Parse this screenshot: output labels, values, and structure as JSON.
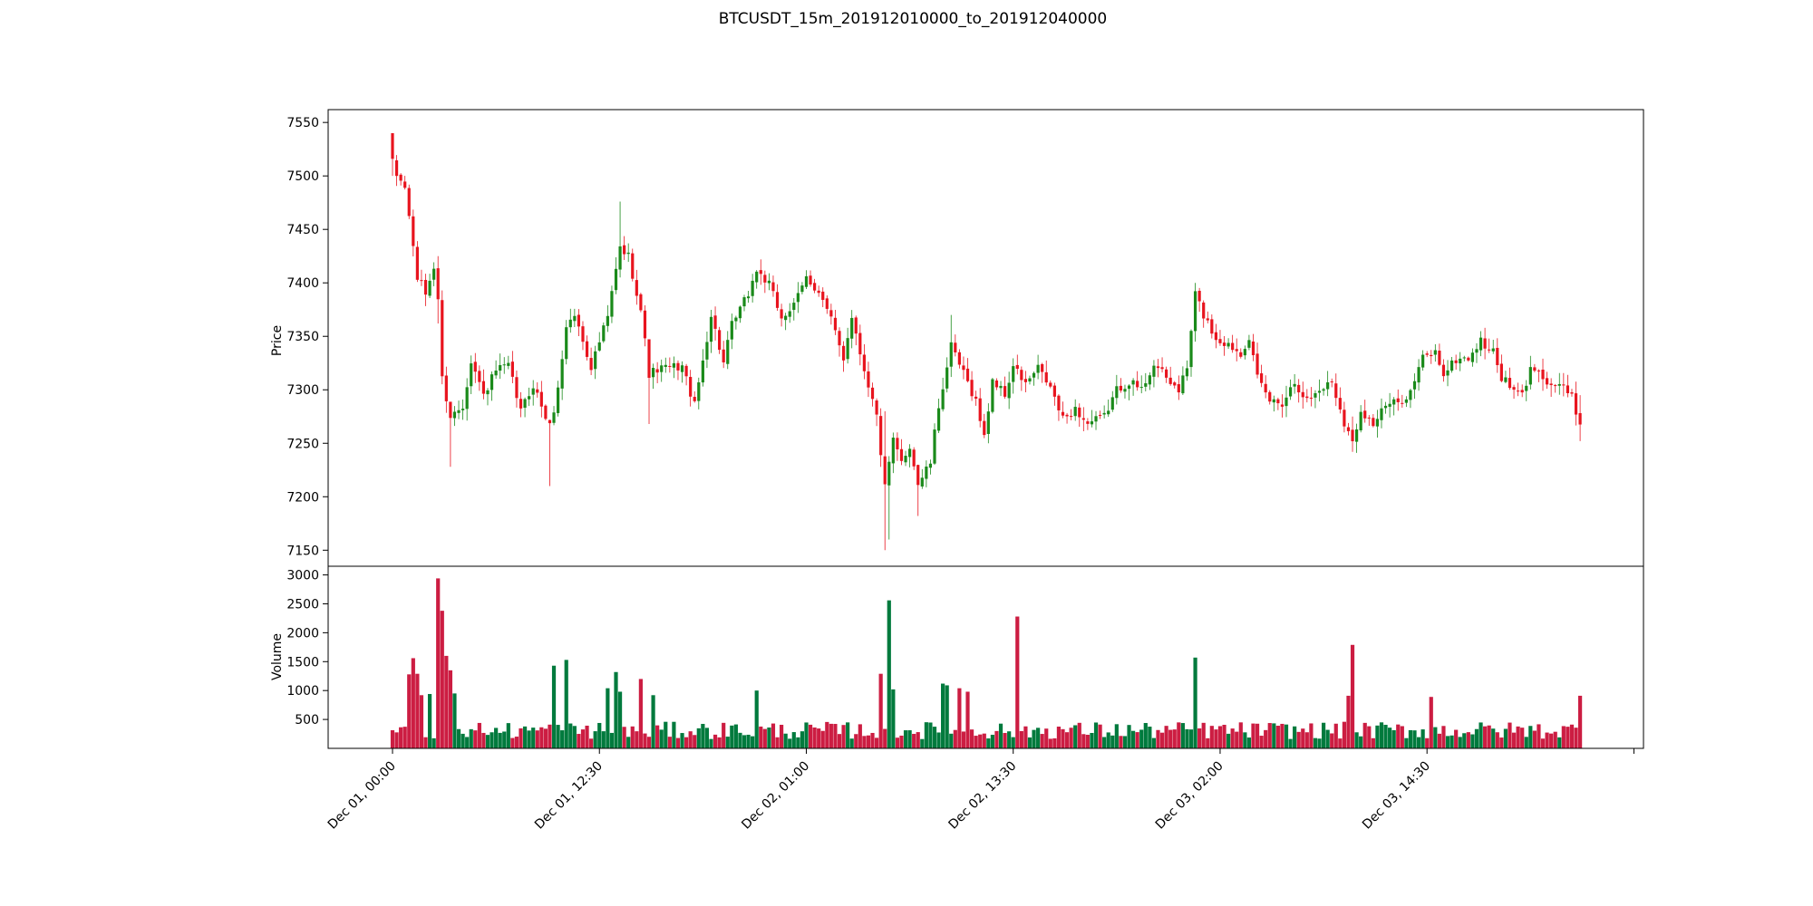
{
  "chart_data": {
    "type": "candlestick",
    "title": "BTCUSDT_15m_201912010000_to_201912040000",
    "price_axis": {
      "label": "Price",
      "ylim": [
        7135,
        7562
      ],
      "ticks": [
        7150,
        7200,
        7250,
        7300,
        7350,
        7400,
        7450,
        7500,
        7550
      ]
    },
    "volume_axis": {
      "label": "Volume",
      "ylim": [
        0,
        3150
      ],
      "ticks": [
        500,
        1000,
        1500,
        2000,
        2500,
        3000
      ]
    },
    "x_axis": {
      "tick_labels": [
        "Dec 01, 00:00",
        "Dec 01, 12:30",
        "Dec 02, 01:00",
        "Dec 02, 13:30",
        "Dec 03, 02:00",
        "Dec 03, 14:30"
      ],
      "tick_indices": [
        0,
        50,
        100,
        150,
        200,
        250
      ]
    },
    "colors": {
      "up": "#1a8a1a",
      "down": "#e8141e",
      "vol_up": "#007a3d",
      "vol_down": "#cc1d42"
    },
    "key_points": [
      {
        "i": 0,
        "p": 7512
      },
      {
        "i": 1,
        "p": 7500
      },
      {
        "i": 3,
        "p": 7490
      },
      {
        "i": 6,
        "p": 7405
      },
      {
        "i": 8,
        "p": 7390
      },
      {
        "i": 10,
        "p": 7415
      },
      {
        "i": 11,
        "p": 7385
      },
      {
        "i": 12,
        "p": 7310
      },
      {
        "i": 14,
        "p": 7275
      },
      {
        "i": 17,
        "p": 7285
      },
      {
        "i": 19,
        "p": 7328
      },
      {
        "i": 22,
        "p": 7295
      },
      {
        "i": 25,
        "p": 7318
      },
      {
        "i": 28,
        "p": 7322
      },
      {
        "i": 31,
        "p": 7280
      },
      {
        "i": 34,
        "p": 7305
      },
      {
        "i": 38,
        "p": 7265
      },
      {
        "i": 40,
        "p": 7300
      },
      {
        "i": 42,
        "p": 7360
      },
      {
        "i": 44,
        "p": 7370
      },
      {
        "i": 48,
        "p": 7322
      },
      {
        "i": 52,
        "p": 7368
      },
      {
        "i": 54,
        "p": 7412
      },
      {
        "i": 55,
        "p": 7432
      },
      {
        "i": 57,
        "p": 7425
      },
      {
        "i": 60,
        "p": 7375
      },
      {
        "i": 62,
        "p": 7315
      },
      {
        "i": 65,
        "p": 7320
      },
      {
        "i": 70,
        "p": 7322
      },
      {
        "i": 73,
        "p": 7285
      },
      {
        "i": 77,
        "p": 7370
      },
      {
        "i": 80,
        "p": 7325
      },
      {
        "i": 82,
        "p": 7360
      },
      {
        "i": 86,
        "p": 7390
      },
      {
        "i": 88,
        "p": 7412
      },
      {
        "i": 91,
        "p": 7398
      },
      {
        "i": 94,
        "p": 7368
      },
      {
        "i": 97,
        "p": 7378
      },
      {
        "i": 100,
        "p": 7405
      },
      {
        "i": 103,
        "p": 7392
      },
      {
        "i": 106,
        "p": 7365
      },
      {
        "i": 109,
        "p": 7330
      },
      {
        "i": 111,
        "p": 7370
      },
      {
        "i": 113,
        "p": 7335
      },
      {
        "i": 117,
        "p": 7275
      },
      {
        "i": 119,
        "p": 7208
      },
      {
        "i": 121,
        "p": 7252
      },
      {
        "i": 123,
        "p": 7232
      },
      {
        "i": 125,
        "p": 7248
      },
      {
        "i": 127,
        "p": 7212
      },
      {
        "i": 130,
        "p": 7232
      },
      {
        "i": 132,
        "p": 7285
      },
      {
        "i": 135,
        "p": 7340
      },
      {
        "i": 138,
        "p": 7315
      },
      {
        "i": 141,
        "p": 7290
      },
      {
        "i": 143,
        "p": 7255
      },
      {
        "i": 145,
        "p": 7310
      },
      {
        "i": 148,
        "p": 7295
      },
      {
        "i": 150,
        "p": 7322
      },
      {
        "i": 153,
        "p": 7305
      },
      {
        "i": 156,
        "p": 7320
      },
      {
        "i": 159,
        "p": 7302
      },
      {
        "i": 162,
        "p": 7272
      },
      {
        "i": 165,
        "p": 7282
      },
      {
        "i": 168,
        "p": 7268
      },
      {
        "i": 172,
        "p": 7275
      },
      {
        "i": 175,
        "p": 7300
      },
      {
        "i": 178,
        "p": 7308
      },
      {
        "i": 181,
        "p": 7300
      },
      {
        "i": 184,
        "p": 7325
      },
      {
        "i": 187,
        "p": 7310
      },
      {
        "i": 190,
        "p": 7300
      },
      {
        "i": 192,
        "p": 7320
      },
      {
        "i": 194,
        "p": 7390
      },
      {
        "i": 196,
        "p": 7370
      },
      {
        "i": 199,
        "p": 7348
      },
      {
        "i": 202,
        "p": 7342
      },
      {
        "i": 205,
        "p": 7335
      },
      {
        "i": 207,
        "p": 7350
      },
      {
        "i": 209,
        "p": 7310
      },
      {
        "i": 212,
        "p": 7290
      },
      {
        "i": 215,
        "p": 7288
      },
      {
        "i": 218,
        "p": 7308
      },
      {
        "i": 221,
        "p": 7290
      },
      {
        "i": 224,
        "p": 7300
      },
      {
        "i": 227,
        "p": 7308
      },
      {
        "i": 230,
        "p": 7270
      },
      {
        "i": 232,
        "p": 7250
      },
      {
        "i": 234,
        "p": 7282
      },
      {
        "i": 237,
        "p": 7268
      },
      {
        "i": 240,
        "p": 7285
      },
      {
        "i": 243,
        "p": 7288
      },
      {
        "i": 246,
        "p": 7298
      },
      {
        "i": 249,
        "p": 7330
      },
      {
        "i": 252,
        "p": 7335
      },
      {
        "i": 254,
        "p": 7315
      },
      {
        "i": 257,
        "p": 7328
      },
      {
        "i": 260,
        "p": 7330
      },
      {
        "i": 263,
        "p": 7345
      },
      {
        "i": 266,
        "p": 7335
      },
      {
        "i": 268,
        "p": 7312
      },
      {
        "i": 271,
        "p": 7298
      },
      {
        "i": 273,
        "p": 7295
      },
      {
        "i": 275,
        "p": 7318
      },
      {
        "i": 277,
        "p": 7322
      },
      {
        "i": 279,
        "p": 7305
      },
      {
        "i": 282,
        "p": 7305
      },
      {
        "i": 285,
        "p": 7292
      },
      {
        "i": 287,
        "p": 7268
      }
    ],
    "volume_spikes": [
      {
        "i": 4,
        "v": 1280
      },
      {
        "i": 5,
        "v": 1560
      },
      {
        "i": 6,
        "v": 1290
      },
      {
        "i": 7,
        "v": 920
      },
      {
        "i": 9,
        "v": 940
      },
      {
        "i": 11,
        "v": 2940
      },
      {
        "i": 12,
        "v": 2380
      },
      {
        "i": 13,
        "v": 1600
      },
      {
        "i": 14,
        "v": 1350
      },
      {
        "i": 15,
        "v": 950
      },
      {
        "i": 39,
        "v": 1430
      },
      {
        "i": 42,
        "v": 1530
      },
      {
        "i": 52,
        "v": 1040
      },
      {
        "i": 54,
        "v": 1320
      },
      {
        "i": 55,
        "v": 980
      },
      {
        "i": 60,
        "v": 1200
      },
      {
        "i": 63,
        "v": 920
      },
      {
        "i": 88,
        "v": 1000
      },
      {
        "i": 118,
        "v": 1290
      },
      {
        "i": 120,
        "v": 2560
      },
      {
        "i": 121,
        "v": 1020
      },
      {
        "i": 133,
        "v": 1120
      },
      {
        "i": 134,
        "v": 1090
      },
      {
        "i": 137,
        "v": 1040
      },
      {
        "i": 139,
        "v": 980
      },
      {
        "i": 151,
        "v": 2280
      },
      {
        "i": 194,
        "v": 1570
      },
      {
        "i": 231,
        "v": 910
      },
      {
        "i": 232,
        "v": 1790
      },
      {
        "i": 251,
        "v": 890
      },
      {
        "i": 287,
        "v": 910
      }
    ],
    "wick_extremes": [
      {
        "i": 0,
        "high": 7540,
        "low": 7500
      },
      {
        "i": 11,
        "high": 7425,
        "low": 7362
      },
      {
        "i": 14,
        "high": 7282,
        "low": 7228
      },
      {
        "i": 38,
        "high": 7272,
        "low": 7210
      },
      {
        "i": 55,
        "high": 7476,
        "low": 7405
      },
      {
        "i": 62,
        "high": 7328,
        "low": 7268
      },
      {
        "i": 119,
        "high": 7280,
        "low": 7150
      },
      {
        "i": 120,
        "high": 7238,
        "low": 7160
      },
      {
        "i": 127,
        "high": 7230,
        "low": 7182
      },
      {
        "i": 135,
        "high": 7370,
        "low": 7312
      },
      {
        "i": 194,
        "high": 7400,
        "low": 7345
      },
      {
        "i": 232,
        "high": 7275,
        "low": 7242
      },
      {
        "i": 287,
        "high": 7295,
        "low": 7252
      }
    ]
  }
}
